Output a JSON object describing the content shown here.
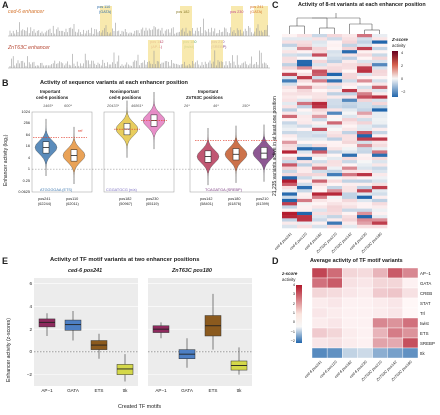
{
  "panels": {
    "A": {
      "letter": "A",
      "track1_title": "ced-6 enhancer",
      "track2_title": "ZnT63C enhancer",
      "track1_labels": [
        "pos 110",
        "(GATA)",
        "pos 182",
        "pos 230",
        "pos 241",
        "(GATA)"
      ],
      "track2_labels": [
        "pos 142",
        "(AP-1)",
        "pos 180",
        "(twist)",
        "pos 210",
        "(SREBP)"
      ]
    },
    "B": {
      "letter": "B",
      "title": "Activity of sequence variants at each enhancer position",
      "groups": [
        {
          "title1": "Important",
          "title2": "ced-6 positions",
          "sig": [
            "1465*",
            "600*"
          ],
          "motif": "ATGGGGAA (ETS)"
        },
        {
          "title1": "Nonimportant",
          "title2": "ced-6 positions",
          "sig": [
            "20433*",
            "46861*"
          ],
          "motif": "CGGATGCG (n/a)"
        },
        {
          "title1": "Important",
          "title2": "ZnT63C positions",
          "sig": [
            "26*",
            "46*",
            "150*"
          ],
          "motif": "TCAGATGA (SREBP)"
        }
      ],
      "xlabels": [
        {
          "pos": "pos241",
          "n": "(62244)"
        },
        {
          "pos": "pos110",
          "n": "(62011)"
        },
        {
          "pos": "pos182",
          "n": "(50967)"
        },
        {
          "pos": "pos230",
          "n": "(65119)"
        },
        {
          "pos": "pos142",
          "n": "(58401)"
        },
        {
          "pos": "pos180",
          "n": "(61876)"
        },
        {
          "pos": "pos210",
          "n": "(61399)"
        }
      ],
      "ylabel": "Enhancer activity (log₂)",
      "yticks": [
        "1024",
        "256",
        "64",
        "16",
        "4",
        "1",
        "0.25",
        "0.0625"
      ],
      "ref_label": "ref"
    },
    "C": {
      "letter": "C",
      "title": "Activity of 8-nt variants at each enhancer position",
      "ylabel": "21,235 variants active in at least one position",
      "legend_title": "Z-score",
      "legend_title2": "activity",
      "legend_ticks": [
        "4",
        "2",
        "0",
        "−2"
      ],
      "xlabels": [
        "ced-6 pos241",
        "ced-6 pos110",
        "ced-6 pos182",
        "ZnT63C pos210",
        "ZnT63C pos142",
        "ced-6 pos230",
        "ZnT63C pos180"
      ]
    },
    "D": {
      "letter": "D",
      "title": "Average activity of TF motif variants",
      "legend_title": "z-score",
      "legend_title2": "activity",
      "legend_ticks": [
        "4",
        "3",
        "2",
        "1",
        "0",
        "−1",
        "−2"
      ],
      "rows": [
        "AP−1",
        "GATA",
        "CREB",
        "STAT",
        "Trl",
        "twist",
        "ETS",
        "SREBP",
        "ttk"
      ],
      "cols": [
        "ced-6 pos241",
        "ced-6 pos110",
        "ced-6 pos182",
        "ced-6 pos230",
        "ZnT63C pos210",
        "ZnT63C pos142",
        "ZnT63C pos180"
      ]
    },
    "E": {
      "letter": "E",
      "title": "Activity of TF motif variants at two enhancer positions",
      "facet1": "ced-6 pos241",
      "facet2": "ZnT63C pos180",
      "ylabel": "Enhancer activity (z-scores)",
      "xlabel": "Created TF motifs",
      "yticks": [
        "6",
        "4",
        "2",
        "0",
        "−2"
      ],
      "xticks": [
        "AP−1",
        "GATA",
        "ETS",
        "ttk"
      ]
    }
  },
  "colors": {
    "ced6_title": "#d4722a",
    "znt_title": "#b5432f",
    "highlight": "#f6e39a",
    "ref_line": "#e03b2a",
    "heat_high": "#b2182b",
    "heat_low": "#2166ac"
  },
  "chart_data": [
    {
      "type": "violin",
      "categories": [
        "pos241",
        "pos110",
        "pos182",
        "pos230",
        "pos142",
        "pos180",
        "pos210"
      ],
      "medians_log2": [
        3.8,
        2.4,
        7.0,
        8.5,
        2.2,
        2.6,
        2.8
      ],
      "ref_log2": [
        5.5,
        5.5,
        7.0,
        8.5,
        5.0,
        5.0,
        5.0
      ],
      "colors": [
        "#3f79b0",
        "#e6923a",
        "#e5c542",
        "#e57cc0",
        "#b63a5a",
        "#c45a2c",
        "#7a3a80"
      ]
    },
    {
      "type": "heatmap",
      "rows": [
        "AP−1",
        "GATA",
        "CREB",
        "STAT",
        "Trl",
        "twist",
        "ETS",
        "SREBP",
        "ttk"
      ],
      "cols": [
        "ced-6 pos241",
        "ced-6 pos110",
        "ced-6 pos182",
        "ced-6 pos230",
        "ZnT63C pos210",
        "ZnT63C pos142",
        "ZnT63C pos180"
      ],
      "values": [
        [
          3.2,
          2.5,
          0.6,
          0.5,
          1.2,
          2.8,
          2.0
        ],
        [
          2.4,
          2.8,
          0.4,
          0.3,
          0.6,
          0.6,
          0.1
        ],
        [
          0.6,
          0.5,
          0.3,
          0.2,
          0.8,
          0.9,
          0.4
        ],
        [
          0.2,
          0.3,
          0.1,
          0.1,
          0.2,
          0.3,
          0.0
        ],
        [
          0.3,
          0.2,
          0.1,
          0.1,
          0.2,
          0.3,
          0.0
        ],
        [
          0.2,
          0.3,
          0.1,
          0.1,
          2.0,
          1.8,
          2.4
        ],
        [
          0.8,
          0.6,
          0.2,
          0.1,
          1.2,
          2.2,
          1.8
        ],
        [
          0.3,
          0.4,
          0.2,
          0.1,
          1.5,
          1.4,
          3.0
        ],
        [
          -1.5,
          -1.4,
          -0.5,
          -0.4,
          -1.0,
          -1.2,
          -1.4
        ]
      ]
    },
    {
      "type": "box",
      "facets": [
        "ced-6 pos241",
        "ZnT63C pos180"
      ],
      "categories": [
        "AP−1",
        "GATA",
        "ETS",
        "ttk"
      ],
      "colors": [
        "#8e2a5e",
        "#4d7fc4",
        "#8b5a1e",
        "#d4d84a"
      ],
      "series": [
        {
          "name": "ced-6 pos241",
          "q1": [
            2.2,
            1.9,
            0.2,
            -2.0
          ],
          "median": [
            2.6,
            2.4,
            0.6,
            -1.5
          ],
          "q3": [
            2.9,
            2.8,
            1.0,
            -1.1
          ],
          "min": [
            1.4,
            1.0,
            -0.6,
            -2.6
          ],
          "max": [
            3.4,
            3.6,
            1.6,
            -0.2
          ]
        },
        {
          "name": "ZnT63C pos180",
          "q1": [
            1.7,
            -0.6,
            1.4,
            -1.6
          ],
          "median": [
            2.0,
            -0.2,
            2.3,
            -1.2
          ],
          "q3": [
            2.3,
            0.2,
            3.2,
            -0.8
          ],
          "min": [
            1.2,
            -1.4,
            0.2,
            -2.0
          ],
          "max": [
            2.6,
            1.2,
            5.1,
            0.4
          ]
        }
      ],
      "ylim": [
        -3,
        6
      ]
    }
  ]
}
